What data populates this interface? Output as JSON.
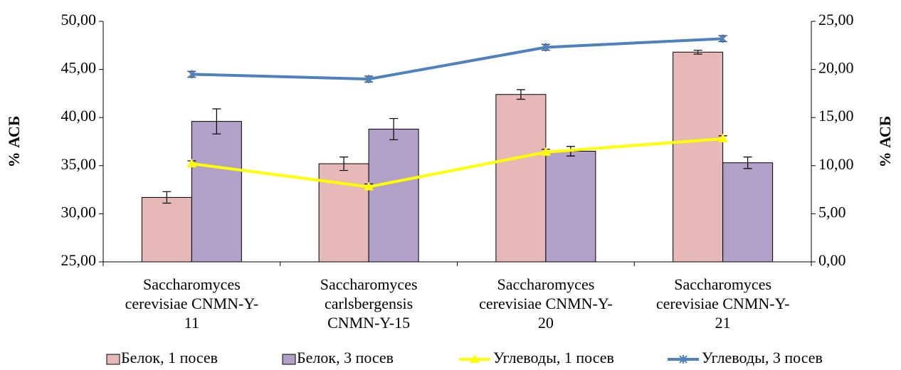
{
  "chart_data": {
    "type": "bar",
    "categories": [
      "Saccharomyces cerevisiae CNMN-Y-11",
      "Saccharomyces carlsbergensis CNMN-Y-15",
      "Saccharomyces cerevisiae CNMN-Y-20",
      "Saccharomyces cerevisiae CNMN-Y-21"
    ],
    "ylabel": "% АСБ",
    "y2label": "% АСБ",
    "ylim": [
      25,
      50
    ],
    "yticks": [
      {
        "value": 25,
        "label": "25,00"
      },
      {
        "value": 30,
        "label": "30,00"
      },
      {
        "value": 35,
        "label": "35,00"
      },
      {
        "value": 40,
        "label": "40,00"
      },
      {
        "value": 45,
        "label": "45,00"
      },
      {
        "value": 50,
        "label": "50,00"
      }
    ],
    "y2lim": [
      0,
      25
    ],
    "y2ticks": [
      {
        "value": 0,
        "label": "0,00"
      },
      {
        "value": 5,
        "label": "5,00"
      },
      {
        "value": 10,
        "label": "10,00"
      },
      {
        "value": 15,
        "label": "15,00"
      },
      {
        "value": 20,
        "label": "20,00"
      },
      {
        "value": 25,
        "label": "25,00"
      }
    ],
    "legend": "bottom",
    "series": [
      {
        "name": "Белок, 1 посев",
        "type": "bar",
        "color": "#e6b8b7",
        "values": [
          31.7,
          35.2,
          42.4,
          46.8
        ],
        "errors": [
          0.6,
          0.7,
          0.5,
          0.2
        ]
      },
      {
        "name": "Белок, 3 посев",
        "type": "bar",
        "color": "#b1a0c7",
        "values": [
          39.6,
          38.8,
          36.5,
          35.3
        ],
        "errors": [
          1.3,
          1.1,
          0.5,
          0.6
        ]
      },
      {
        "name": "Углеводы, 1 посев",
        "type": "line",
        "axis": "y2",
        "marker": "triangle",
        "color": "#ffff00",
        "values": [
          10.2,
          7.8,
          11.4,
          12.8
        ],
        "errors": [
          0.3,
          0.3,
          0.3,
          0.3
        ]
      },
      {
        "name": "Углеводы, 3 посев",
        "type": "line",
        "axis": "y2",
        "marker": "star",
        "color": "#4f81bd",
        "values": [
          19.5,
          19.0,
          22.3,
          23.2
        ],
        "errors": [
          0.3,
          0.3,
          0.3,
          0.3
        ]
      }
    ]
  }
}
